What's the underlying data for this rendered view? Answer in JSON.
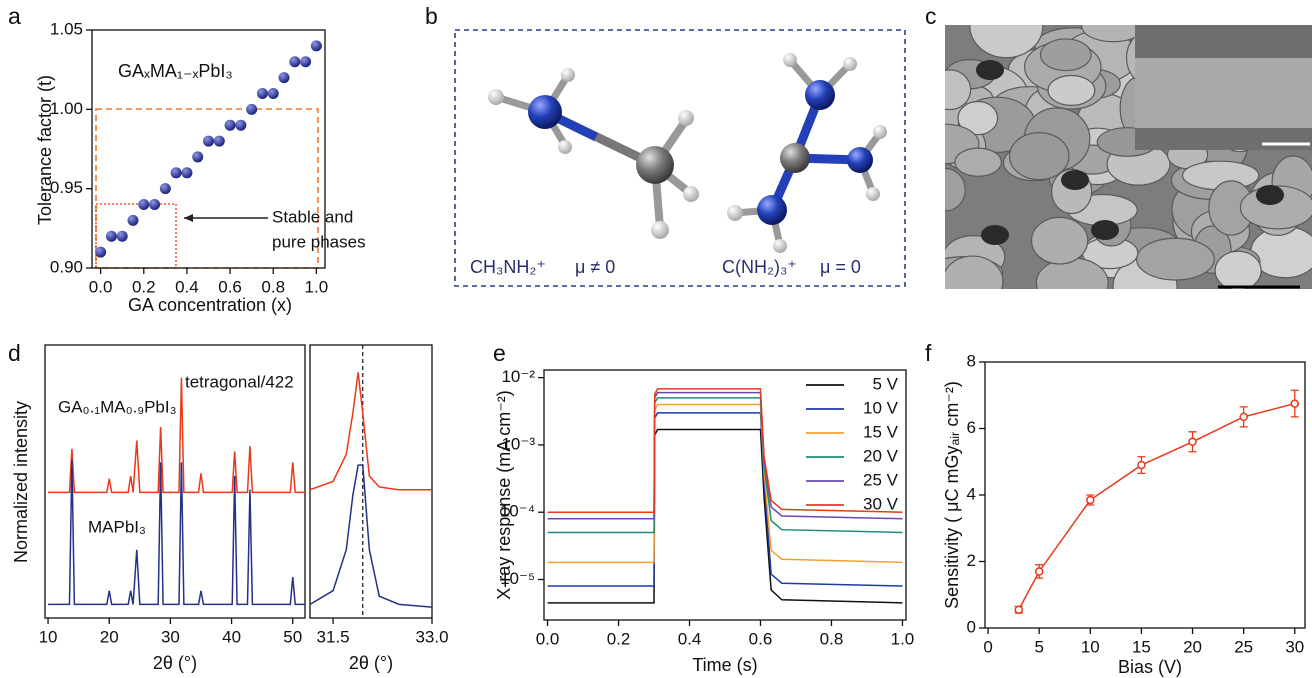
{
  "chart_data": [
    {
      "type": "scatter",
      "label": "a",
      "annotations": [
        "GAₓMA₁₋ₓPbI₃",
        "Stable and",
        "pure phases"
      ],
      "xlabel": "GA concentration (x)",
      "ylabel": "Tolerance factor (t)",
      "x": [
        0,
        0.05,
        0.1,
        0.15,
        0.2,
        0.25,
        0.3,
        0.35,
        0.4,
        0.45,
        0.5,
        0.55,
        0.6,
        0.65,
        0.7,
        0.75,
        0.8,
        0.85,
        0.9,
        0.95,
        1
      ],
      "values": [
        0.91,
        0.92,
        0.92,
        0.93,
        0.94,
        0.94,
        0.95,
        0.96,
        0.96,
        0.97,
        0.98,
        0.98,
        0.99,
        0.99,
        1.0,
        1.01,
        1.01,
        1.02,
        1.03,
        1.03,
        1.04
      ],
      "color": "#28318a",
      "xlim": [
        -0.04,
        1.04
      ],
      "ylim": [
        0.9,
        1.05
      ],
      "xticks": [
        {
          "value": 0,
          "label": "0.0"
        },
        0.2,
        0.4,
        0.6,
        0.8,
        {
          "value": 1,
          "label": "1.0"
        }
      ],
      "yticks": [
        {
          "value": 0.9,
          "label": "0.90"
        },
        0.95,
        {
          "value": 1,
          "label": "1.00"
        },
        1.05
      ]
    },
    {
      "type": "line",
      "label": "d",
      "xlabel": "2θ (°)",
      "ylabel": "Normalized intensity",
      "annotations": [
        "tetragonal/422"
      ],
      "x": [
        10,
        13.5,
        13.9,
        14.3,
        19.6,
        20,
        20.4,
        23.1,
        23.5,
        23.9,
        24.5,
        25,
        28,
        28.4,
        28.8,
        31.4,
        31.8,
        32.2,
        34.6,
        35,
        35.4,
        40.1,
        40.5,
        40.9,
        42.6,
        43,
        43.4,
        49.6,
        50,
        50.4,
        52
      ],
      "series": [
        {
          "name": "GA₀.₁MA₀.₉PbI₃",
          "color": "#e8391a",
          "values": [
            0.46,
            0.46,
            0.62,
            0.46,
            0.46,
            0.51,
            0.46,
            0.46,
            0.52,
            0.46,
            0.65,
            0.46,
            0.46,
            0.7,
            0.46,
            0.46,
            0.88,
            0.46,
            0.46,
            0.53,
            0.46,
            0.46,
            0.61,
            0.46,
            0.46,
            0.63,
            0.46,
            0.46,
            0.57,
            0.46,
            0.46
          ]
        },
        {
          "name": "MAPbI₃",
          "color": "#24308a",
          "values": [
            0.05,
            0.05,
            0.58,
            0.05,
            0.05,
            0.1,
            0.05,
            0.05,
            0.1,
            0.05,
            0.25,
            0.05,
            0.05,
            0.57,
            0.05,
            0.05,
            0.57,
            0.05,
            0.05,
            0.1,
            0.05,
            0.05,
            0.52,
            0.05,
            0.05,
            0.47,
            0.05,
            0.05,
            0.15,
            0.05,
            0.05
          ]
        }
      ],
      "xlim": [
        9.5,
        52
      ],
      "ylim": [
        0,
        1
      ],
      "xticks": [
        10,
        20,
        30,
        40,
        50
      ]
    },
    {
      "type": "line",
      "xlabel": "2θ (°)",
      "reference_x": 31.95,
      "x": [
        31.15,
        31.5,
        31.7,
        31.8,
        31.88,
        31.95,
        32.05,
        32.2,
        32.5,
        33.0
      ],
      "series": [
        {
          "color": "#e8391a",
          "values": [
            0.47,
            0.5,
            0.6,
            0.75,
            0.9,
            0.75,
            0.52,
            0.48,
            0.47,
            0.47
          ]
        },
        {
          "color": "#24308a",
          "values": [
            0.05,
            0.1,
            0.25,
            0.45,
            0.56,
            0.56,
            0.25,
            0.08,
            0.05,
            0.04
          ]
        }
      ],
      "xlim": [
        31.15,
        33.0
      ],
      "ylim": [
        0,
        1
      ],
      "xticks": [
        31.5,
        {
          "value": 33,
          "label": "33.0"
        }
      ]
    },
    {
      "type": "line",
      "label": "e",
      "xlabel": "Time (s)",
      "ylabel": "X-ray response (mA cm⁻²)",
      "yscale": "log",
      "legend": "upper right",
      "x": [
        0,
        0.3,
        0.302,
        0.31,
        0.6,
        0.61,
        0.63,
        0.66,
        1
      ],
      "series": [
        {
          "name": "5 V",
          "color": "#111111",
          "values": [
            4.5e-06,
            4.5e-06,
            0.0014,
            0.0017,
            0.0017,
            0.00017,
            7e-06,
            5e-06,
            4.5e-06
          ]
        },
        {
          "name": "10 V",
          "color": "#1f3aa8",
          "values": [
            8e-06,
            8e-06,
            0.0025,
            0.003,
            0.003,
            0.0003,
            1.2e-05,
            8.8e-06,
            8e-06
          ]
        },
        {
          "name": "15 V",
          "color": "#f5a030",
          "values": [
            1.8e-05,
            1.8e-05,
            0.0033,
            0.004,
            0.004,
            0.0004,
            2.7e-05,
            2e-05,
            1.8e-05
          ]
        },
        {
          "name": "20 V",
          "color": "#1f8a7a",
          "values": [
            5e-05,
            5e-05,
            0.0042,
            0.005,
            0.005,
            0.0005,
            7.5e-05,
            5.5e-05,
            5e-05
          ]
        },
        {
          "name": "25 V",
          "color": "#6a4ab0",
          "values": [
            8e-05,
            8e-05,
            0.005,
            0.006,
            0.006,
            0.0006,
            0.00012,
            8.8e-05,
            8e-05
          ]
        },
        {
          "name": "30 V",
          "color": "#e8391a",
          "values": [
            0.0001,
            0.0001,
            0.0057,
            0.0068,
            0.0068,
            0.00068,
            0.00015,
            0.00011,
            0.0001
          ]
        }
      ],
      "xlim": [
        -0.01,
        1.01
      ],
      "ylim": [
        2.5e-06,
        0.013
      ],
      "xticks": [
        {
          "value": 0,
          "label": "0.0"
        },
        0.2,
        0.4,
        0.6,
        0.8,
        {
          "value": 1,
          "label": "1.0"
        }
      ],
      "yticks": [
        {
          "value": 1e-05,
          "label": "10⁻⁵"
        },
        {
          "value": 0.0001,
          "label": "10⁻⁴"
        },
        {
          "value": 0.001,
          "label": "10⁻³"
        },
        {
          "value": 0.01,
          "label": "10⁻²"
        }
      ]
    },
    {
      "type": "line",
      "label": "f",
      "xlabel": "Bias (V)",
      "ylabel": "Sensitivity ( μC mGyₐᵢᵣ cm⁻²)",
      "x": [
        3,
        5,
        10,
        15,
        20,
        25,
        30
      ],
      "values": [
        0.55,
        1.7,
        3.85,
        4.9,
        5.6,
        6.35,
        6.75
      ],
      "errors": [
        0.1,
        0.2,
        0.15,
        0.25,
        0.3,
        0.3,
        0.4
      ],
      "color": "#e8391a",
      "xlim": [
        -0.3,
        31
      ],
      "ylim": [
        0,
        8
      ],
      "xticks": [
        0,
        5,
        10,
        15,
        20,
        25,
        30
      ],
      "yticks": [
        0,
        2,
        4,
        6,
        8
      ]
    }
  ],
  "panels": {
    "b": {
      "label": "b",
      "left_formula": "CH₃NH₂⁺",
      "left_dipole": "μ ≠ 0",
      "right_formula": "C(NH₂)₃⁺",
      "right_dipole": "μ = 0"
    },
    "c": {
      "label": "c"
    }
  }
}
